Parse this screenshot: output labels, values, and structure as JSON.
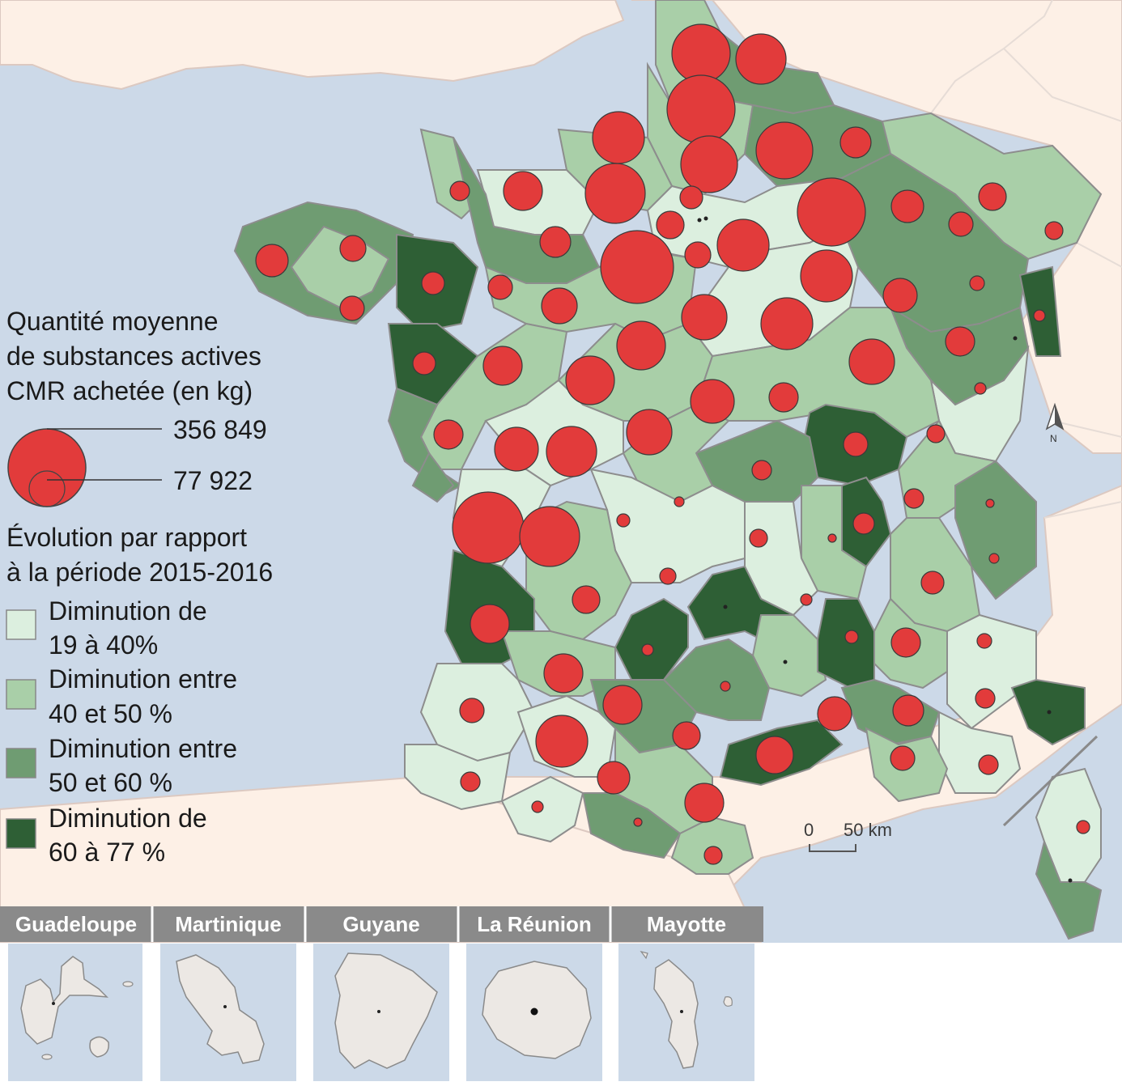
{
  "legend": {
    "size_title_lines": [
      "Quantité moyenne",
      "de substances actives",
      "CMR achetée (en kg)"
    ],
    "size_max_label": "356 849",
    "size_min_label": "77 922",
    "evolution_title_lines": [
      "Évolution par rapport",
      "à la période 2015-2016"
    ],
    "classes": [
      {
        "lines": [
          "Diminution de",
          "19 à 40%"
        ],
        "color": "#dcefdf"
      },
      {
        "lines": [
          "Diminution entre",
          "40 et 50 %"
        ],
        "color": "#a9cfa8"
      },
      {
        "lines": [
          "Diminution entre",
          "50 et 60 %"
        ],
        "color": "#6f9c72"
      },
      {
        "lines": [
          "Diminution de",
          "60 à 77 %"
        ],
        "color": "#2e5f35"
      }
    ]
  },
  "scale_bar": {
    "zero": "0",
    "end": "50 km"
  },
  "north_arrow": {
    "label": "N",
    "icon": "north-arrow-icon"
  },
  "insets": [
    {
      "name": "Guadeloupe"
    },
    {
      "name": "Martinique"
    },
    {
      "name": "Guyane"
    },
    {
      "name": "La Réunion"
    },
    {
      "name": "Mayotte"
    }
  ],
  "colors": {
    "sea": "#ccd9e8",
    "land_foreign": "#fdf0e6",
    "symbol_fill": "#e23b3b",
    "inset_header": "#8a8a8a",
    "inset_land": "#ece8e4"
  }
}
